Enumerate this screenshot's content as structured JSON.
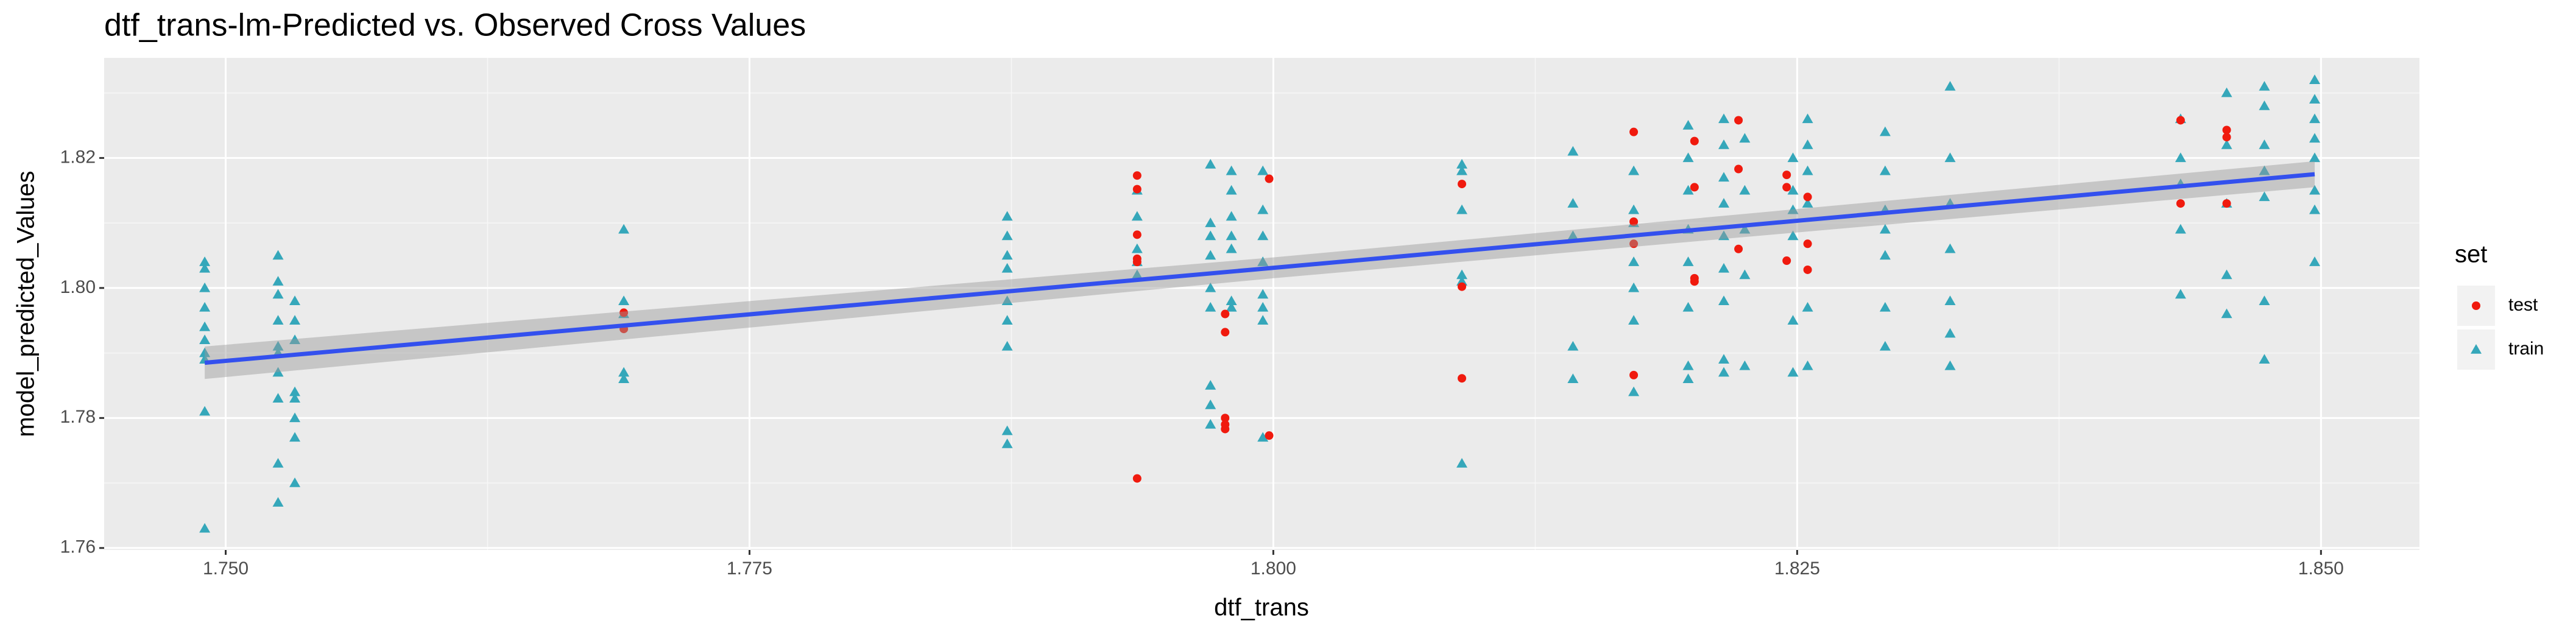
{
  "chart_data": {
    "type": "scatter",
    "title": "dtf_trans-lm-Predicted vs. Observed Cross Values",
    "x_label": "dtf_trans",
    "y_label": "model_predicted_Values",
    "xlim": [
      1.7442,
      1.8547
    ],
    "ylim": [
      1.7597,
      1.8354
    ],
    "xticks": [
      {
        "value": 1.75,
        "label": "1.750"
      },
      {
        "value": 1.775,
        "label": "1.775"
      },
      {
        "value": 1.8,
        "label": "1.800"
      },
      {
        "value": 1.825,
        "label": "1.825"
      },
      {
        "value": 1.85,
        "label": "1.850"
      }
    ],
    "yticks": [
      1.76,
      1.78,
      {
        "value": 1.8,
        "label": "1.80"
      },
      1.82
    ],
    "grid": true,
    "legend": {
      "title": "set",
      "position": "right"
    },
    "series": [
      {
        "name": "test",
        "color": "#f01a0e",
        "marker": "circle",
        "x": [
          1.769,
          1.769,
          1.7935,
          1.7935,
          1.7935,
          1.7935,
          1.7935,
          1.7935,
          1.7977,
          1.7977,
          1.7977,
          1.7977,
          1.7977,
          1.7998,
          1.7998,
          1.809,
          1.809,
          1.809,
          1.8172,
          1.8172,
          1.8172,
          1.8172,
          1.8201,
          1.8201,
          1.8201,
          1.8201,
          1.8222,
          1.8222,
          1.8222,
          1.8245,
          1.8245,
          1.8245,
          1.8255,
          1.8255,
          1.8255,
          1.8433,
          1.8433,
          1.8455,
          1.8455,
          1.8455
        ],
        "values": [
          1.7962,
          1.7937,
          1.8173,
          1.8152,
          1.8082,
          1.8045,
          1.804,
          1.7707,
          1.796,
          1.7932,
          1.78,
          1.779,
          1.7783,
          1.8168,
          1.7773,
          1.816,
          1.8002,
          1.7861,
          1.824,
          1.8102,
          1.8068,
          1.7866,
          1.8226,
          1.8155,
          1.8015,
          1.801,
          1.8258,
          1.8183,
          1.806,
          1.8174,
          1.8155,
          1.8042,
          1.814,
          1.8068,
          1.8028,
          1.8258,
          1.813,
          1.8243,
          1.8232,
          1.813
        ]
      },
      {
        "name": "train",
        "color": "#35a7ba",
        "marker": "triangle",
        "x": [
          1.749,
          1.749,
          1.749,
          1.749,
          1.749,
          1.749,
          1.749,
          1.749,
          1.749,
          1.749,
          1.7525,
          1.7525,
          1.7525,
          1.7525,
          1.7525,
          1.7525,
          1.7525,
          1.7525,
          1.7525,
          1.7525,
          1.7533,
          1.7533,
          1.7533,
          1.7533,
          1.7533,
          1.7533,
          1.7533,
          1.7533,
          1.769,
          1.769,
          1.769,
          1.769,
          1.769,
          1.7873,
          1.7873,
          1.7873,
          1.7873,
          1.7873,
          1.7873,
          1.7873,
          1.7873,
          1.7873,
          1.7935,
          1.7935,
          1.7935,
          1.7935,
          1.7935,
          1.797,
          1.797,
          1.797,
          1.797,
          1.797,
          1.797,
          1.797,
          1.797,
          1.797,
          1.798,
          1.798,
          1.798,
          1.798,
          1.798,
          1.798,
          1.798,
          1.7995,
          1.7995,
          1.7995,
          1.7995,
          1.7995,
          1.7995,
          1.7995,
          1.7995,
          1.809,
          1.809,
          1.809,
          1.809,
          1.809,
          1.809,
          1.8143,
          1.8143,
          1.8143,
          1.8143,
          1.8143,
          1.8172,
          1.8172,
          1.8172,
          1.8172,
          1.8172,
          1.8172,
          1.8172,
          1.8198,
          1.8198,
          1.8198,
          1.8198,
          1.8198,
          1.8198,
          1.8198,
          1.8198,
          1.8215,
          1.8215,
          1.8215,
          1.8215,
          1.8215,
          1.8215,
          1.8215,
          1.8215,
          1.8215,
          1.8225,
          1.8225,
          1.8225,
          1.8225,
          1.8225,
          1.8248,
          1.8248,
          1.8248,
          1.8248,
          1.8248,
          1.8248,
          1.8255,
          1.8255,
          1.8255,
          1.8255,
          1.8255,
          1.8255,
          1.8292,
          1.8292,
          1.8292,
          1.8292,
          1.8292,
          1.8292,
          1.8292,
          1.8323,
          1.8323,
          1.8323,
          1.8323,
          1.8323,
          1.8323,
          1.8323,
          1.8433,
          1.8433,
          1.8433,
          1.8433,
          1.8433,
          1.8455,
          1.8455,
          1.8455,
          1.8455,
          1.8455,
          1.8473,
          1.8473,
          1.8473,
          1.8473,
          1.8473,
          1.8473,
          1.8473,
          1.8497,
          1.8497,
          1.8497,
          1.8497,
          1.8497,
          1.8497,
          1.8497,
          1.8497
        ],
        "values": [
          1.804,
          1.803,
          1.8,
          1.797,
          1.794,
          1.792,
          1.79,
          1.789,
          1.781,
          1.763,
          1.805,
          1.801,
          1.799,
          1.795,
          1.791,
          1.79,
          1.787,
          1.783,
          1.773,
          1.767,
          1.798,
          1.795,
          1.792,
          1.784,
          1.783,
          1.78,
          1.777,
          1.77,
          1.809,
          1.798,
          1.796,
          1.787,
          1.786,
          1.811,
          1.808,
          1.805,
          1.803,
          1.798,
          1.795,
          1.791,
          1.778,
          1.776,
          1.815,
          1.811,
          1.806,
          1.804,
          1.802,
          1.819,
          1.81,
          1.808,
          1.805,
          1.8,
          1.797,
          1.785,
          1.782,
          1.779,
          1.818,
          1.815,
          1.811,
          1.808,
          1.806,
          1.798,
          1.797,
          1.818,
          1.812,
          1.808,
          1.804,
          1.799,
          1.797,
          1.795,
          1.777,
          1.819,
          1.818,
          1.812,
          1.802,
          1.801,
          1.773,
          1.821,
          1.813,
          1.808,
          1.791,
          1.786,
          1.818,
          1.812,
          1.81,
          1.804,
          1.8,
          1.795,
          1.784,
          1.825,
          1.82,
          1.815,
          1.809,
          1.804,
          1.797,
          1.788,
          1.786,
          1.826,
          1.822,
          1.817,
          1.813,
          1.808,
          1.803,
          1.798,
          1.789,
          1.787,
          1.823,
          1.815,
          1.809,
          1.802,
          1.788,
          1.82,
          1.815,
          1.812,
          1.808,
          1.795,
          1.787,
          1.826,
          1.822,
          1.818,
          1.813,
          1.797,
          1.788,
          1.824,
          1.818,
          1.812,
          1.809,
          1.805,
          1.797,
          1.791,
          1.831,
          1.82,
          1.813,
          1.806,
          1.798,
          1.793,
          1.788,
          1.826,
          1.82,
          1.816,
          1.809,
          1.799,
          1.83,
          1.822,
          1.813,
          1.802,
          1.796,
          1.831,
          1.828,
          1.822,
          1.818,
          1.814,
          1.798,
          1.789,
          1.832,
          1.829,
          1.826,
          1.823,
          1.82,
          1.815,
          1.812,
          1.804
        ]
      }
    ],
    "fit": {
      "color": "#3350ee",
      "band_color": "#999999",
      "x": [
        1.749,
        1.8,
        1.8497
      ],
      "values": [
        1.7885,
        1.8031,
        1.8175
      ],
      "lower": [
        1.786,
        1.8015,
        1.8155
      ],
      "upper": [
        1.791,
        1.8047,
        1.8195
      ]
    }
  }
}
